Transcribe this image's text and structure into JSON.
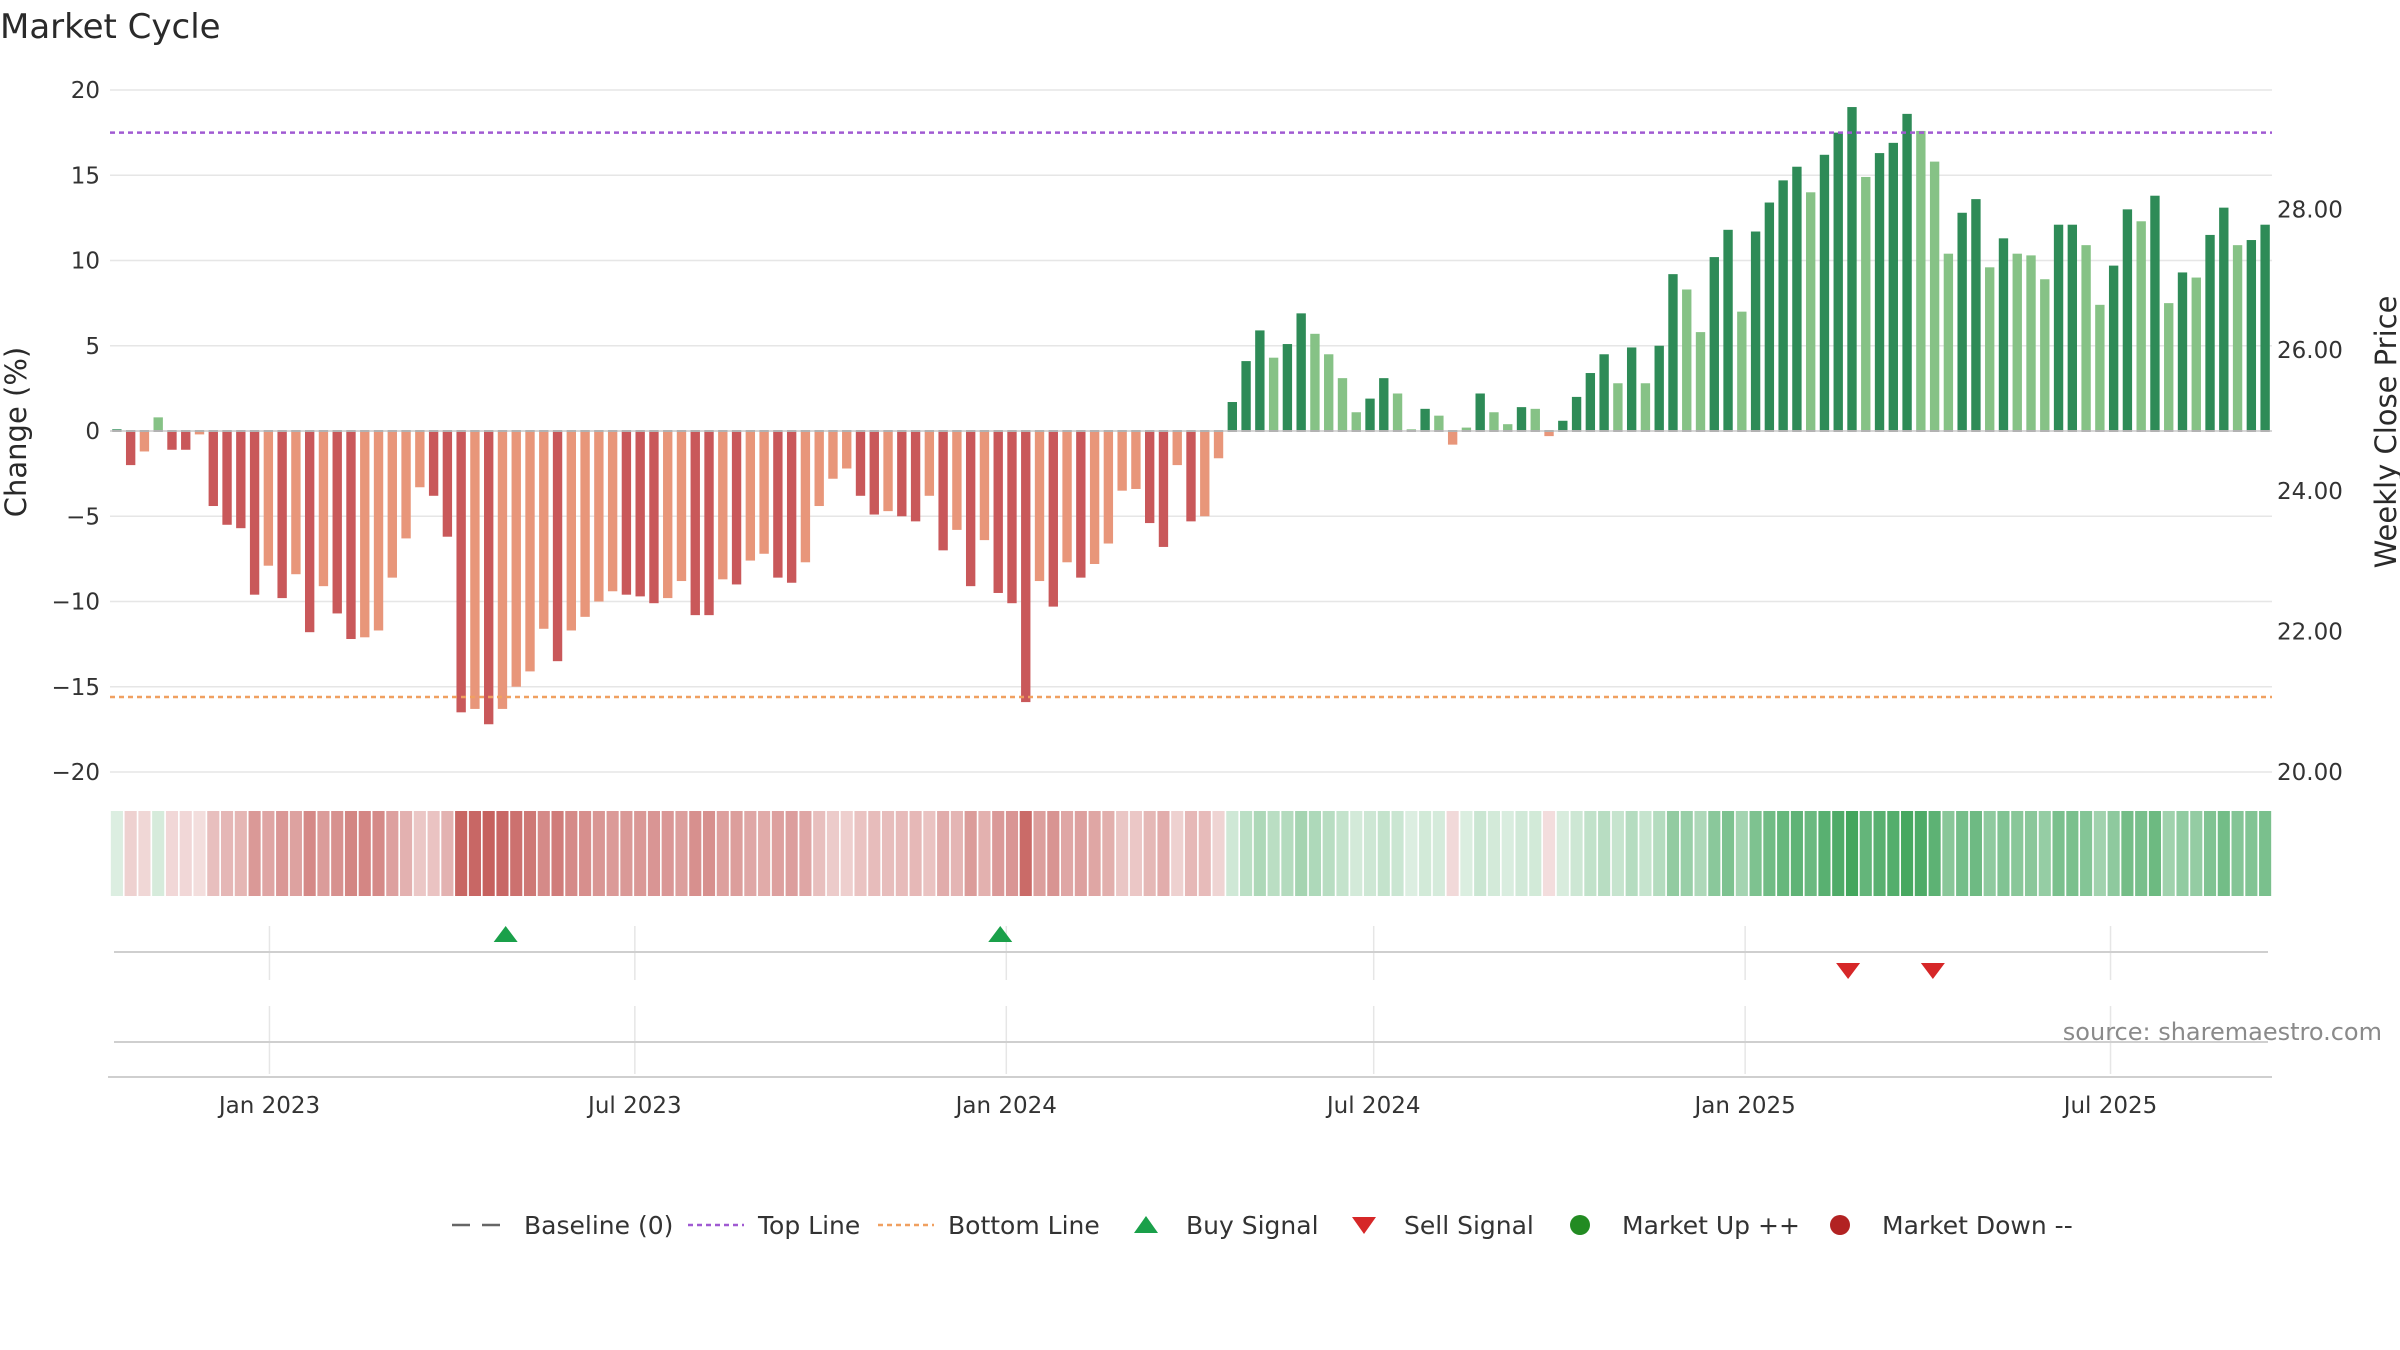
{
  "chart_data": {
    "type": "bar",
    "title": "Market Cycle",
    "ylabel": "Change (%)",
    "y2label": "Weekly Close Price",
    "ylim": [
      -20,
      20
    ],
    "y2lim": [
      20,
      29.7
    ],
    "yticks": [
      20,
      15,
      10,
      5,
      0,
      -5,
      -10,
      -15,
      -20
    ],
    "ytick_labels": [
      "20",
      "15",
      "10",
      "5",
      "0",
      "−5",
      "−10",
      "−15",
      "−20"
    ],
    "y2ticks": [
      28,
      26,
      24,
      22,
      20
    ],
    "y2tick_labels": [
      "28.00",
      "26.00",
      "24.00",
      "22.00",
      "20.00"
    ],
    "x_start": "2022-10-14",
    "x_end": "2025-09-19",
    "xticks": [
      {
        "date": "2023-01-01",
        "label": "Jan 2023"
      },
      {
        "date": "2023-07-01",
        "label": "Jul 2023"
      },
      {
        "date": "2024-01-01",
        "label": "Jan 2024"
      },
      {
        "date": "2024-07-01",
        "label": "Jul 2024"
      },
      {
        "date": "2025-01-01",
        "label": "Jan 2025"
      },
      {
        "date": "2025-07-01",
        "label": "Jul 2025"
      }
    ],
    "first_week": "2022-10-14",
    "week_step_days": 7,
    "weekly_change": [
      0.1,
      -2.0,
      -1.2,
      0.8,
      -1.1,
      -1.1,
      -0.2,
      -4.4,
      -5.5,
      -5.7,
      -9.6,
      -7.9,
      -9.8,
      -8.4,
      -11.8,
      -9.1,
      -10.7,
      -12.2,
      -12.1,
      -11.7,
      -8.6,
      -6.3,
      -3.3,
      -3.8,
      -6.2,
      -16.5,
      -16.3,
      -17.2,
      -16.3,
      -15.0,
      -14.1,
      -11.6,
      -13.5,
      -11.7,
      -10.9,
      -10.0,
      -9.4,
      -9.6,
      -9.7,
      -10.1,
      -9.8,
      -8.8,
      -10.8,
      -10.8,
      -8.7,
      -9.0,
      -7.6,
      -7.2,
      -8.6,
      -8.9,
      -7.7,
      -4.4,
      -2.8,
      -2.2,
      -3.8,
      -4.9,
      -4.7,
      -5.0,
      -5.3,
      -3.8,
      -7.0,
      -5.8,
      -9.1,
      -6.4,
      -9.5,
      -10.1,
      -15.9,
      -8.8,
      -10.3,
      -7.7,
      -8.6,
      -7.8,
      -6.6,
      -3.5,
      -3.4,
      -5.4,
      -6.8,
      -2.0,
      -5.3,
      -5.0,
      -1.6,
      1.7,
      4.1,
      5.9,
      4.3,
      5.1,
      6.9,
      5.7,
      4.5,
      3.1,
      1.1,
      1.9,
      3.1,
      2.2,
      0.1,
      1.3,
      0.9,
      -0.8,
      0.2,
      2.2,
      1.1,
      0.4,
      1.4,
      1.3,
      -0.3,
      0.6,
      2.0,
      3.4,
      4.5,
      2.8,
      4.9,
      2.8,
      5.0,
      9.2,
      8.3,
      5.8,
      10.2,
      11.8,
      7.0,
      11.7,
      13.4,
      14.7,
      15.5,
      14.0,
      16.2,
      17.5,
      19.0,
      14.9,
      16.3,
      16.9,
      18.6,
      17.6,
      15.8,
      10.4,
      12.8,
      13.6,
      9.6,
      11.3,
      10.4,
      10.3,
      8.9,
      12.1,
      12.1,
      10.9,
      7.4,
      9.7,
      13.0,
      12.3,
      13.8,
      7.5,
      9.3,
      9.0,
      11.5,
      13.1,
      10.9,
      11.2,
      12.1
    ],
    "top_line": 17.5,
    "bottom_line": -15.6,
    "buy_signals": [
      "2023-04-28",
      "2023-12-29"
    ],
    "sell_signals": [
      "2025-02-21",
      "2025-04-04"
    ],
    "legend": [
      {
        "key": "baseline",
        "label": "Baseline (0)"
      },
      {
        "key": "top",
        "label": "Top Line"
      },
      {
        "key": "bottom",
        "label": "Bottom Line"
      },
      {
        "key": "buy",
        "label": "Buy Signal"
      },
      {
        "key": "sell",
        "label": "Sell Signal"
      },
      {
        "key": "up",
        "label": "Market Up ++"
      },
      {
        "key": "down",
        "label": "Market Down --"
      }
    ],
    "legend_position": "bottom-center",
    "grid": true,
    "colors": {
      "up_dark": "#2e8b57",
      "up_light": "#86c286",
      "down_dark": "#c9585a",
      "down_light": "#e8967a",
      "top_line": "#a05ad2",
      "bottom_line": "#f0a060",
      "baseline": "#666666",
      "buy": "#1aa04a",
      "sell": "#d62728",
      "market_up": "#228b22",
      "market_down": "#b22222",
      "grid": "#e6e6e6",
      "heat_up": "#3fa45a",
      "heat_down": "#c0504d"
    }
  },
  "source": "source: sharemaestro.com"
}
